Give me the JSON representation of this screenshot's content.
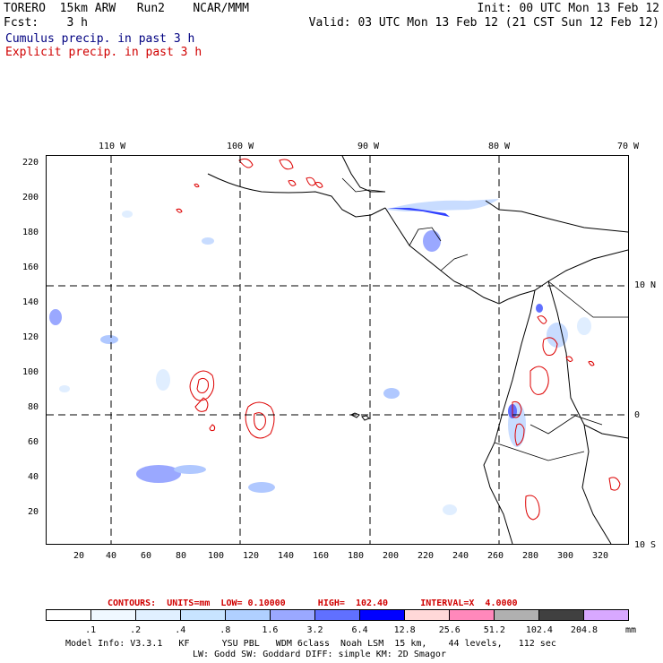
{
  "header": {
    "line1_left": "TORERO  15km ARW   Run2    NCAR/MMM",
    "line1_right": "Init: 00 UTC Mon 13 Feb 12",
    "line2_left": "Fcst:    3 h",
    "line2_right": "Valid: 03 UTC Mon 13 Feb 12 (21 CST Sun 12 Feb 12)",
    "legend1": "Cumulus precip. in past 3 h",
    "legend2": "Explicit precip. in past 3 h"
  },
  "map": {
    "top_lon_labels": [
      "110 W",
      "100 W",
      "90 W",
      "80 W",
      "70 W"
    ],
    "right_lat_labels": [
      "10 N",
      "0",
      "10 S"
    ],
    "left_y_labels": [
      "220",
      "200",
      "180",
      "160",
      "140",
      "120",
      "100",
      "80",
      "60",
      "40",
      "20"
    ],
    "bottom_x_labels": [
      "20",
      "40",
      "60",
      "80",
      "100",
      "120",
      "140",
      "160",
      "180",
      "200",
      "220",
      "240",
      "260",
      "280",
      "300",
      "320"
    ]
  },
  "contours_info": "CONTOURS:  UNITS=mm  LOW= 0.10000      HIGH=  102.40      INTERVAL=X  4.0000",
  "colorbar": {
    "unit": "mm",
    "labels": [
      ".1",
      ".2",
      ".4",
      ".8",
      "1.6",
      "3.2",
      "6.4",
      "12.8",
      "25.6",
      "51.2",
      "102.4",
      "204.8"
    ],
    "colors": [
      "#ffffff",
      "#f0f8ff",
      "#e0f0ff",
      "#c8e4ff",
      "#b0d0ff",
      "#9aa8ff",
      "#6070ff",
      "#0000ff",
      "#ffd8d8",
      "#ff88bb",
      "#b0b0b0",
      "#404040",
      "#d8a8ff"
    ]
  },
  "footer": {
    "line1": "Model Info: V3.3.1   KF      YSU PBL   WDM 6class  Noah LSM  15 km,    44 levels,   112 sec",
    "line2": "LW: Godd SW: Goddard DIFF: simple KM: 2D Smagor"
  }
}
